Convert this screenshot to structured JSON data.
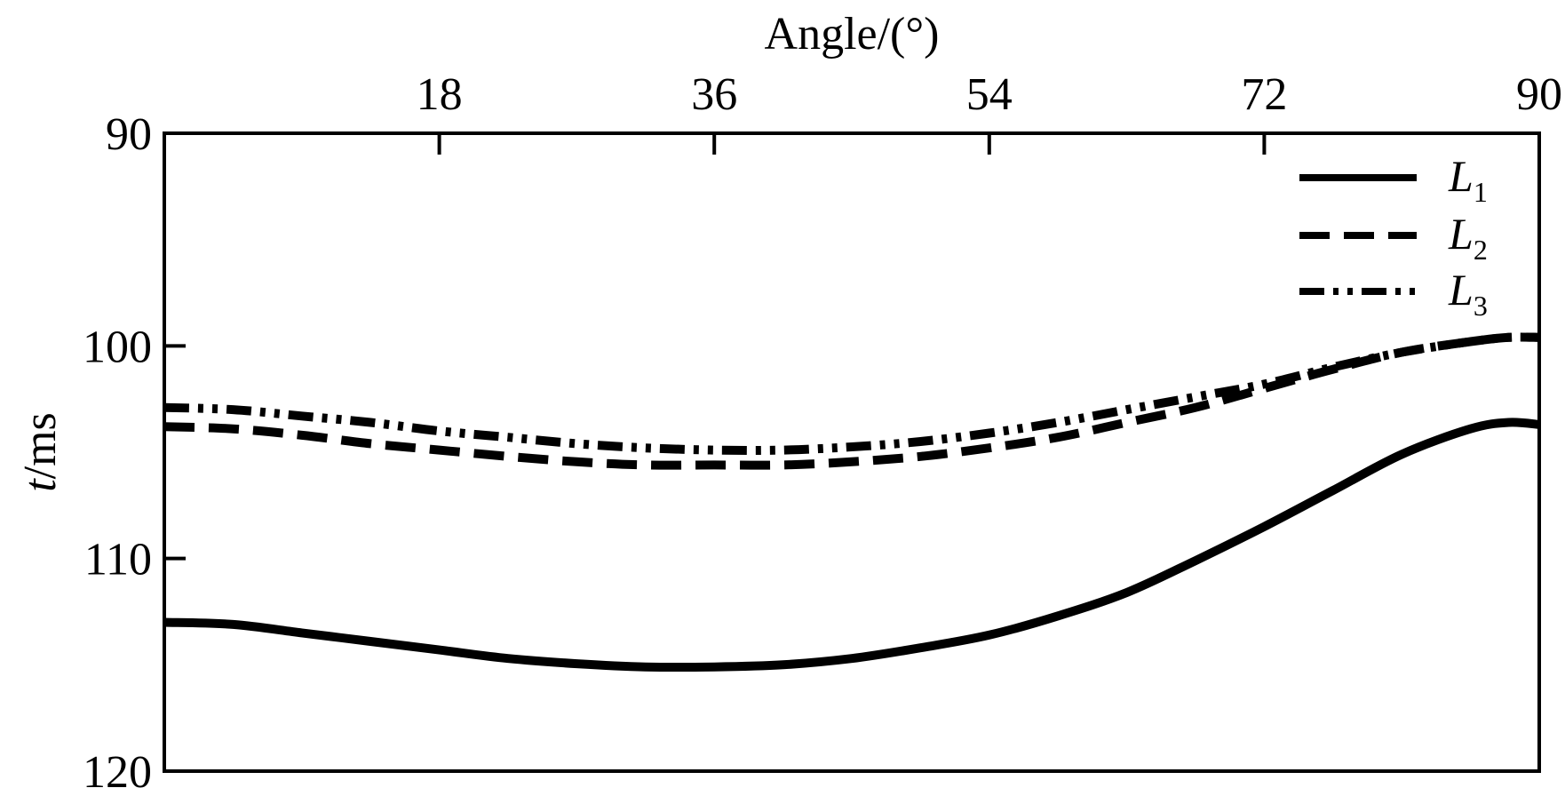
{
  "chart_data": {
    "type": "line",
    "xlabel": "Angle/(°)",
    "ylabel": "t/ms",
    "ylabel_italic_part": "t",
    "ylabel_rest": "/ms",
    "xlim": [
      0,
      90
    ],
    "ylim": [
      90,
      120
    ],
    "y_inverted": true,
    "x_axis_position": "top",
    "x_ticks": [
      18,
      36,
      54,
      72,
      90
    ],
    "x_tick_labels": [
      "18",
      "36",
      "54",
      "72",
      "90"
    ],
    "y_ticks": [
      90,
      100,
      110,
      120
    ],
    "y_tick_labels": [
      "90",
      "100",
      "110",
      "120"
    ],
    "grid": false,
    "legend_position": "top-right",
    "series": [
      {
        "name": "L1",
        "label_main": "L",
        "label_sub": "1",
        "style": "solid",
        "color": "#000000",
        "x": [
          0,
          4.5,
          9,
          13.5,
          18,
          22.5,
          27,
          31.5,
          36,
          40.5,
          45,
          49.5,
          54,
          58.5,
          63,
          67.5,
          72,
          76.5,
          81,
          85.5,
          88,
          90
        ],
        "y": [
          113.0,
          113.1,
          113.5,
          113.9,
          114.3,
          114.7,
          114.95,
          115.1,
          115.1,
          115.0,
          114.7,
          114.2,
          113.6,
          112.7,
          111.6,
          110.1,
          108.5,
          106.8,
          105.1,
          103.9,
          103.6,
          103.7
        ]
      },
      {
        "name": "L2",
        "label_main": "L",
        "label_sub": "2",
        "style": "dashed",
        "color": "#000000",
        "x": [
          0,
          4.5,
          9,
          13.5,
          18,
          22.5,
          27,
          31.5,
          36,
          40.5,
          45,
          49.5,
          54,
          58.5,
          63,
          67.5,
          72,
          76.5,
          81,
          85.5,
          88,
          90
        ],
        "y": [
          103.8,
          103.9,
          104.2,
          104.6,
          104.9,
          105.2,
          105.45,
          105.6,
          105.6,
          105.6,
          105.45,
          105.2,
          104.8,
          104.3,
          103.6,
          102.9,
          102.0,
          101.1,
          100.3,
          99.8,
          99.6,
          99.6
        ]
      },
      {
        "name": "L3",
        "label_main": "L",
        "label_sub": "3",
        "style": "dashdotdot",
        "color": "#000000",
        "x": [
          0,
          4.5,
          9,
          13.5,
          18,
          22.5,
          27,
          31.5,
          36,
          40.5,
          45,
          49.5,
          54,
          58.5,
          63,
          67.5,
          72,
          76.5,
          81,
          85.5,
          88,
          90
        ],
        "y": [
          102.9,
          103.0,
          103.3,
          103.6,
          104.0,
          104.3,
          104.6,
          104.8,
          104.9,
          104.9,
          104.75,
          104.5,
          104.1,
          103.6,
          103.0,
          102.4,
          101.8,
          101.0,
          100.3,
          99.8,
          99.6,
          99.6
        ]
      }
    ]
  }
}
